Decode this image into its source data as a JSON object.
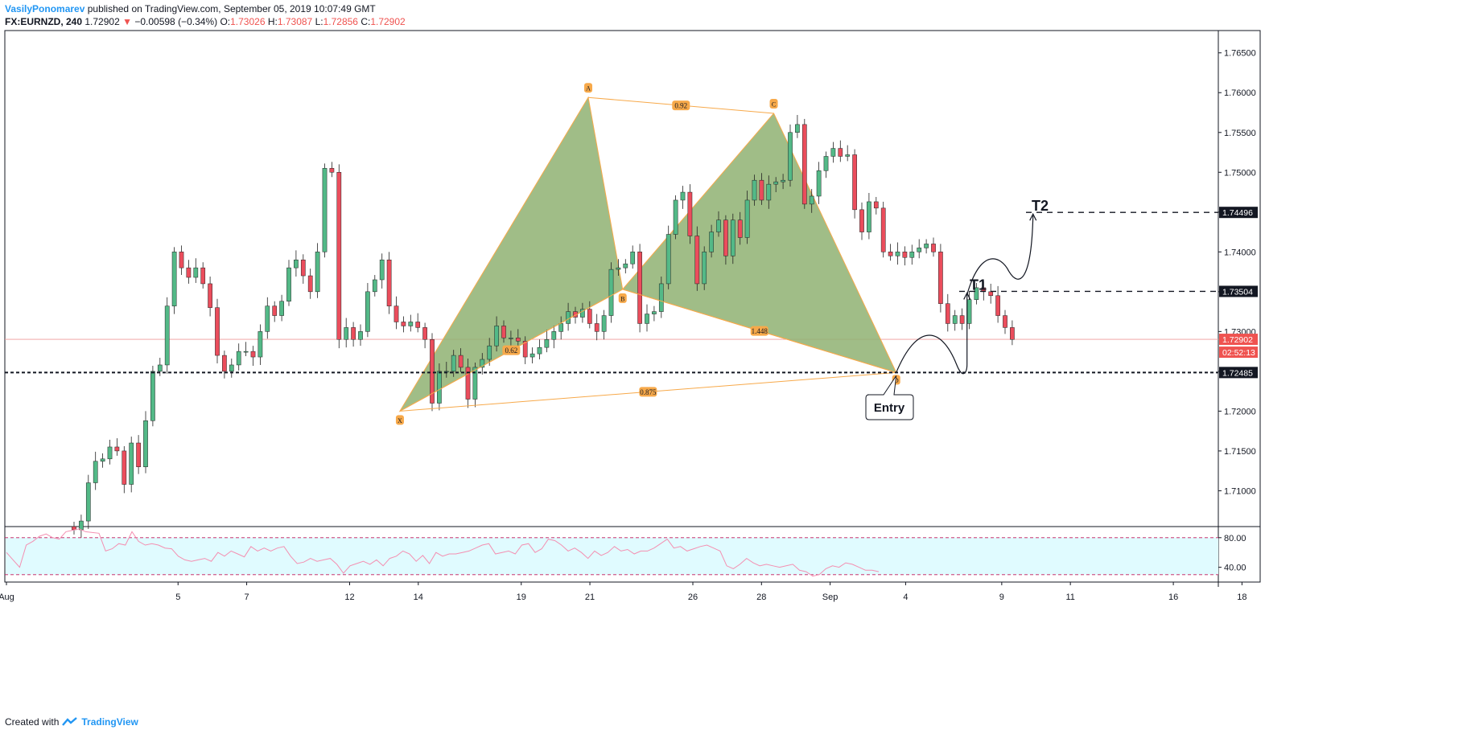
{
  "header": {
    "author": "VasilyPonomarev",
    "published": "published on TradingView.com, September 05, 2019 10:07:49 GMT",
    "symbol": "FX:EURNZD, 240",
    "last": "1.72902",
    "change": "−0.00598 (−0.34%)",
    "o_label": "O:",
    "o": "1.73026",
    "h_label": "H:",
    "h": "1.73087",
    "l_label": "L:",
    "l": "1.72856",
    "c_label": "C:",
    "c": "1.72902"
  },
  "footer": {
    "created_with": "Created with",
    "brand": "TradingView"
  },
  "colors": {
    "up": "#53b987",
    "down": "#eb4d5c",
    "pattern_fill": "#8fb172",
    "pattern_stroke": "#f7a94a",
    "rsi_line": "#f48fb1",
    "rsi_band": "#e0fbff",
    "price_tag": "#ef5350",
    "level_tag": "#131722"
  },
  "chart_data": [
    {
      "type": "candlestick",
      "title": "",
      "ylim": [
        1.7055,
        1.7678
      ],
      "y_ticks": [
        "1.76500",
        "1.76000",
        "1.75500",
        "1.75000",
        "1.74500",
        "1.74000",
        "1.73500",
        "1.73000",
        "1.72500",
        "1.72000",
        "1.71500",
        "1.71000"
      ],
      "x_ticks": [
        {
          "label": "Aug",
          "day": 0
        },
        {
          "label": "5",
          "day": 5
        },
        {
          "label": "7",
          "day": 7
        },
        {
          "label": "12",
          "day": 10
        },
        {
          "label": "14",
          "day": 12
        },
        {
          "label": "19",
          "day": 15
        },
        {
          "label": "21",
          "day": 17
        },
        {
          "label": "26",
          "day": 20
        },
        {
          "label": "28",
          "day": 22
        },
        {
          "label": "Sep",
          "day": 24
        },
        {
          "label": "4",
          "day": 26.2
        },
        {
          "label": "9",
          "day": 29
        },
        {
          "label": "11",
          "day": 31
        },
        {
          "label": "16",
          "day": 34
        },
        {
          "label": "18",
          "day": 36
        }
      ],
      "close_series": [
        1.7051,
        1.7062,
        1.711,
        1.7137,
        1.714,
        1.7155,
        1.715,
        1.7108,
        1.716,
        1.713,
        1.7188,
        1.725,
        1.7258,
        1.7332,
        1.74,
        1.738,
        1.7368,
        1.738,
        1.736,
        1.733,
        1.727,
        1.725,
        1.7258,
        1.7275,
        1.7275,
        1.7268,
        1.73,
        1.7332,
        1.732,
        1.7338,
        1.738,
        1.739,
        1.737,
        1.735,
        1.74,
        1.7505,
        1.75,
        1.729,
        1.7305,
        1.729,
        1.73,
        1.735,
        1.7365,
        1.739,
        1.7332,
        1.7312,
        1.7307,
        1.7312,
        1.7305,
        1.729,
        1.721,
        1.725,
        1.725,
        1.727,
        1.7255,
        1.7215,
        1.7255,
        1.7265,
        1.7282,
        1.7307,
        1.7292,
        1.7292,
        1.7288,
        1.7268,
        1.7272,
        1.728,
        1.729,
        1.73,
        1.731,
        1.7325,
        1.7318,
        1.7328,
        1.731,
        1.73,
        1.732,
        1.7378,
        1.738,
        1.7385,
        1.74,
        1.731,
        1.7322,
        1.7325,
        1.736,
        1.7422,
        1.7465,
        1.7475,
        1.742,
        1.736,
        1.74,
        1.7425,
        1.744,
        1.7395,
        1.744,
        1.7418,
        1.7465,
        1.749,
        1.7465,
        1.7485,
        1.7488,
        1.749,
        1.755,
        1.756,
        1.746,
        1.747,
        1.7502,
        1.752,
        1.753,
        1.752,
        1.7522,
        1.7453,
        1.7425,
        1.7463,
        1.7455,
        1.74,
        1.7395,
        1.74,
        1.7393,
        1.74,
        1.7405,
        1.741,
        1.74,
        1.7335,
        1.731,
        1.732,
        1.731,
        1.734,
        1.7355,
        1.735,
        1.7345,
        1.732,
        1.7305,
        1.729
      ],
      "price_labels": [
        "1.72902",
        "02:52:13",
        "1.74496",
        "1.73504",
        "1.72485"
      ],
      "harmonic_pattern": {
        "points": [
          {
            "label": "X",
            "value": 1.72
          },
          {
            "label": "A",
            "value": 1.7594
          },
          {
            "label": "B",
            "value": 1.7353
          },
          {
            "label": "C",
            "value": 1.7574
          },
          {
            "label": "D",
            "value": 1.72485
          }
        ],
        "ratios": [
          "0.92",
          "0.62",
          "1.448",
          "0.875"
        ]
      },
      "annotations": {
        "entry": "Entry",
        "t1": "T1",
        "t2": "T2"
      }
    },
    {
      "type": "line",
      "name": "",
      "ylim": [
        20,
        95
      ],
      "y_ticks": [
        "80.00",
        "40.00"
      ],
      "bands": [
        30,
        80
      ],
      "values": [
        60,
        50,
        40,
        70,
        75,
        82,
        85,
        80,
        78,
        88,
        90,
        92,
        88,
        87,
        86,
        62,
        65,
        72,
        70,
        88,
        75,
        70,
        72,
        70,
        66,
        65,
        55,
        50,
        48,
        50,
        52,
        48,
        60,
        55,
        62,
        58,
        54,
        68,
        62,
        66,
        62,
        66,
        68,
        55,
        45,
        47,
        52,
        48,
        50,
        52,
        44,
        32,
        42,
        45,
        48,
        44,
        50,
        42,
        52,
        55,
        62,
        58,
        48,
        56,
        45,
        60,
        55,
        58,
        58,
        60,
        62,
        66,
        70,
        72,
        58,
        60,
        62,
        58,
        70,
        72,
        60,
        65,
        78,
        76,
        70,
        62,
        66,
        60,
        52,
        62,
        56,
        60,
        68,
        62,
        64,
        58,
        62,
        62,
        66,
        72,
        78,
        66,
        68,
        62,
        65,
        68,
        70,
        66,
        62,
        42,
        38,
        44,
        52,
        46,
        42,
        44,
        42,
        40,
        42,
        44,
        36,
        34,
        28,
        30,
        38,
        42,
        40,
        46,
        44,
        40,
        36,
        36,
        34
      ]
    }
  ]
}
